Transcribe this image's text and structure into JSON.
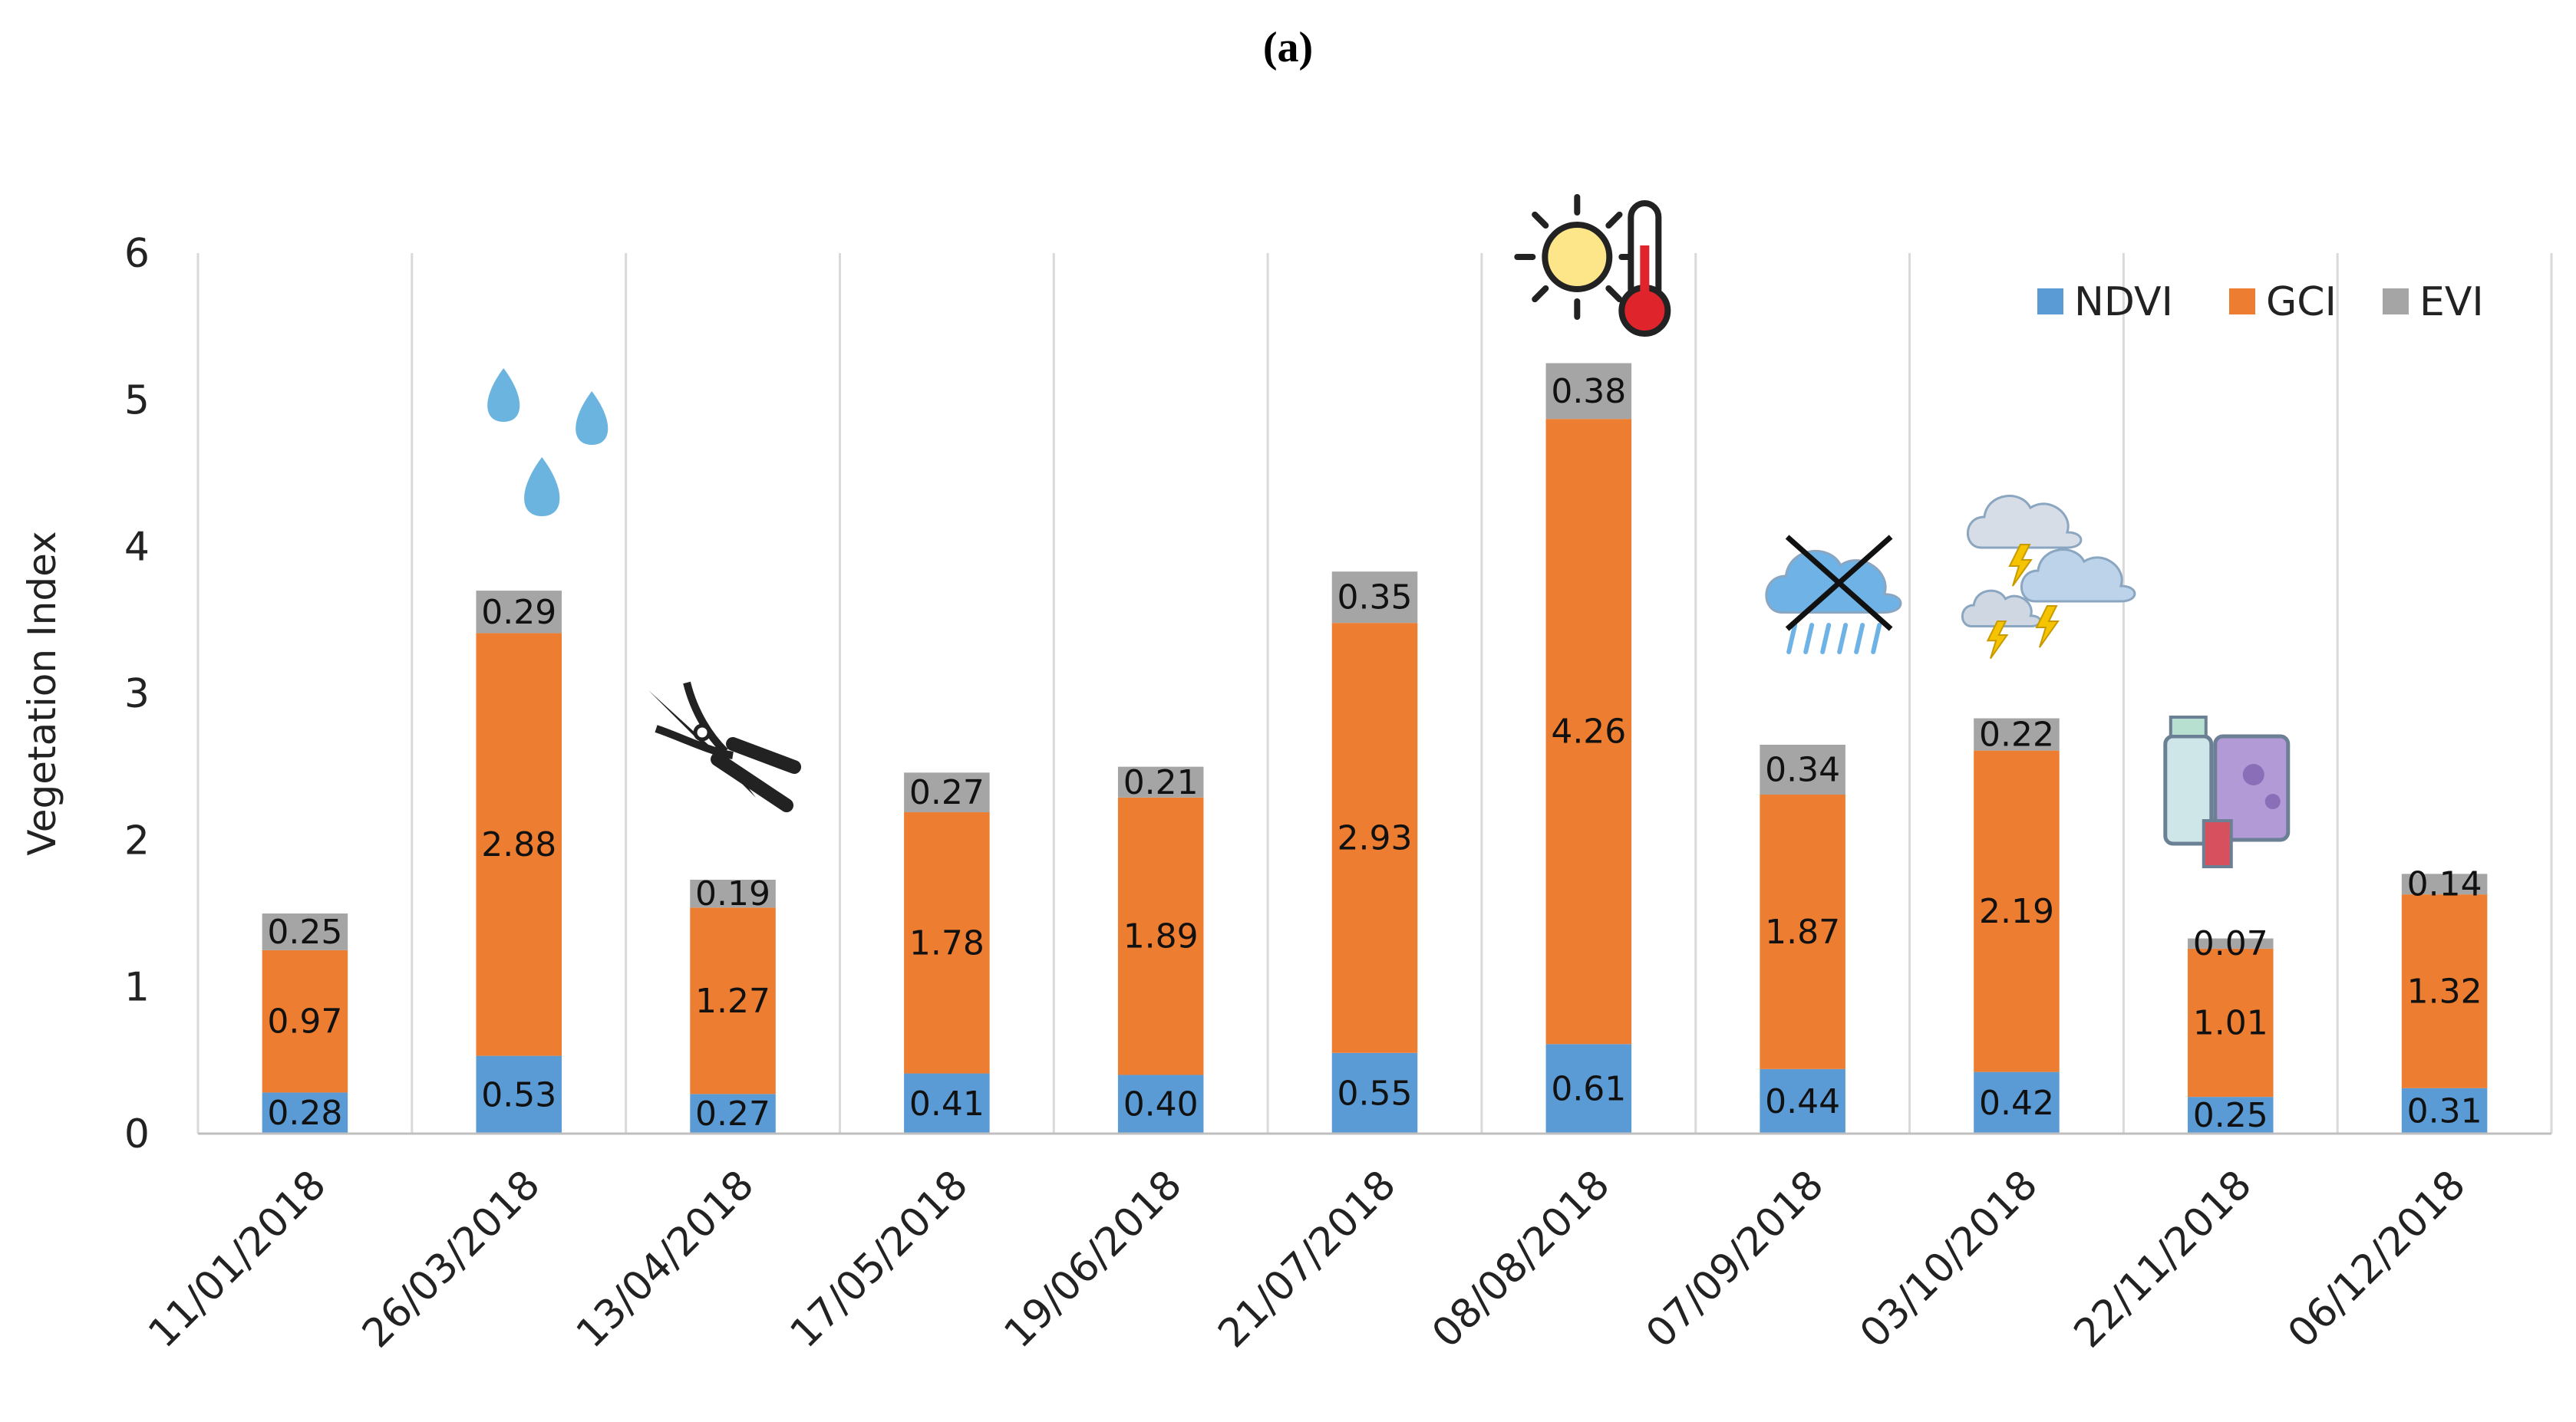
{
  "panel_label": "(a)",
  "chart_data": {
    "type": "bar",
    "stacked": true,
    "categories": [
      "11/01/2018",
      "26/03/2018",
      "13/04/2018",
      "17/05/2018",
      "19/06/2018",
      "21/07/2018",
      "08/08/2018",
      "07/09/2018",
      "03/10/2018",
      "22/11/2018",
      "06/12/2018"
    ],
    "series": [
      {
        "name": "NDVI",
        "color": "#5b9bd5",
        "values": [
          0.28,
          0.53,
          0.27,
          0.41,
          0.4,
          0.55,
          0.61,
          0.44,
          0.42,
          0.25,
          0.31
        ],
        "labels": [
          "0.28",
          "0.53",
          "0.27",
          "0.41",
          "0.40",
          "0.55",
          "0.61",
          "0.44",
          "0.42",
          "0.25",
          "0.31"
        ]
      },
      {
        "name": "GCI",
        "color": "#ed7d31",
        "values": [
          0.97,
          2.88,
          1.27,
          1.78,
          1.89,
          2.93,
          4.26,
          1.87,
          2.19,
          1.01,
          1.32
        ],
        "labels": [
          "0.97",
          "2.88",
          "1.27",
          "1.78",
          "1.89",
          "2.93",
          "4.26",
          "1.87",
          "2.19",
          "1.01",
          "1.32"
        ]
      },
      {
        "name": "EVI",
        "color": "#a5a5a5",
        "values": [
          0.25,
          0.29,
          0.19,
          0.27,
          0.21,
          0.35,
          0.38,
          0.34,
          0.22,
          0.07,
          0.14
        ],
        "labels": [
          "0.25",
          "0.29",
          "0.19",
          "0.27",
          "0.21",
          "0.35",
          "0.38",
          "0.34",
          "0.22",
          "0.07",
          "0.14"
        ]
      }
    ],
    "ylabel": "Vegetation Index",
    "ylim": [
      0,
      6
    ],
    "yticks": [
      "0",
      "1",
      "2",
      "3",
      "4",
      "5",
      "6"
    ],
    "grid": "vertical category separators",
    "legend": "top-right",
    "annotations": [
      {
        "category": "26/03/2018",
        "icon": "water-drops-icon"
      },
      {
        "category": "13/04/2018",
        "icon": "pruning-shears-icon"
      },
      {
        "category": "08/08/2018",
        "icon": "sun-thermometer-icon"
      },
      {
        "category": "07/09/2018",
        "icon": "no-rain-cloud-icon"
      },
      {
        "category": "03/10/2018",
        "icon": "thunderstorm-icon"
      },
      {
        "category": "22/11/2018",
        "icon": "fertilizer-bottles-icon"
      }
    ]
  }
}
